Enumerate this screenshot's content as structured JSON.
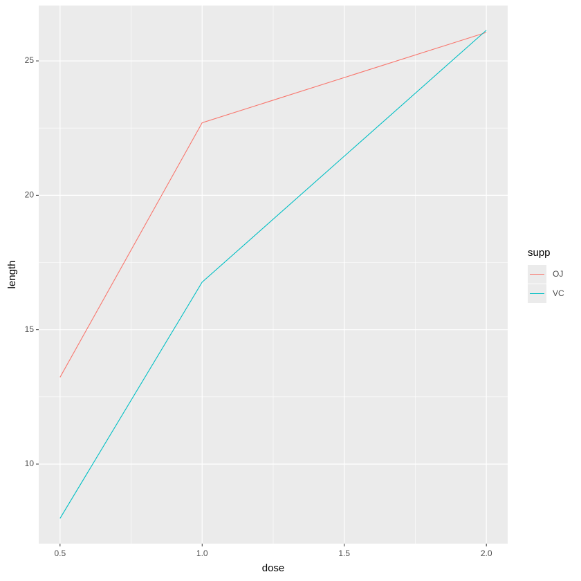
{
  "chart_data": {
    "type": "line",
    "x": [
      0.5,
      1.0,
      2.0
    ],
    "series": [
      {
        "name": "OJ",
        "color": "#F8766D",
        "values": [
          13.23,
          22.7,
          26.06
        ]
      },
      {
        "name": "VC",
        "color": "#00BFC4",
        "values": [
          7.98,
          16.77,
          26.14
        ]
      }
    ],
    "xlabel": "dose",
    "ylabel": "length",
    "legend_title": "supp",
    "xlim": [
      0.425,
      2.075
    ],
    "ylim": [
      7.04,
      27.06
    ],
    "xticks": [
      0.5,
      {
        "value": 1.0,
        "label": "1.0"
      },
      1.5,
      {
        "value": 2.0,
        "label": "2.0"
      }
    ],
    "yticks": [
      10,
      15,
      20,
      25
    ],
    "grid": true,
    "legend": "right"
  }
}
